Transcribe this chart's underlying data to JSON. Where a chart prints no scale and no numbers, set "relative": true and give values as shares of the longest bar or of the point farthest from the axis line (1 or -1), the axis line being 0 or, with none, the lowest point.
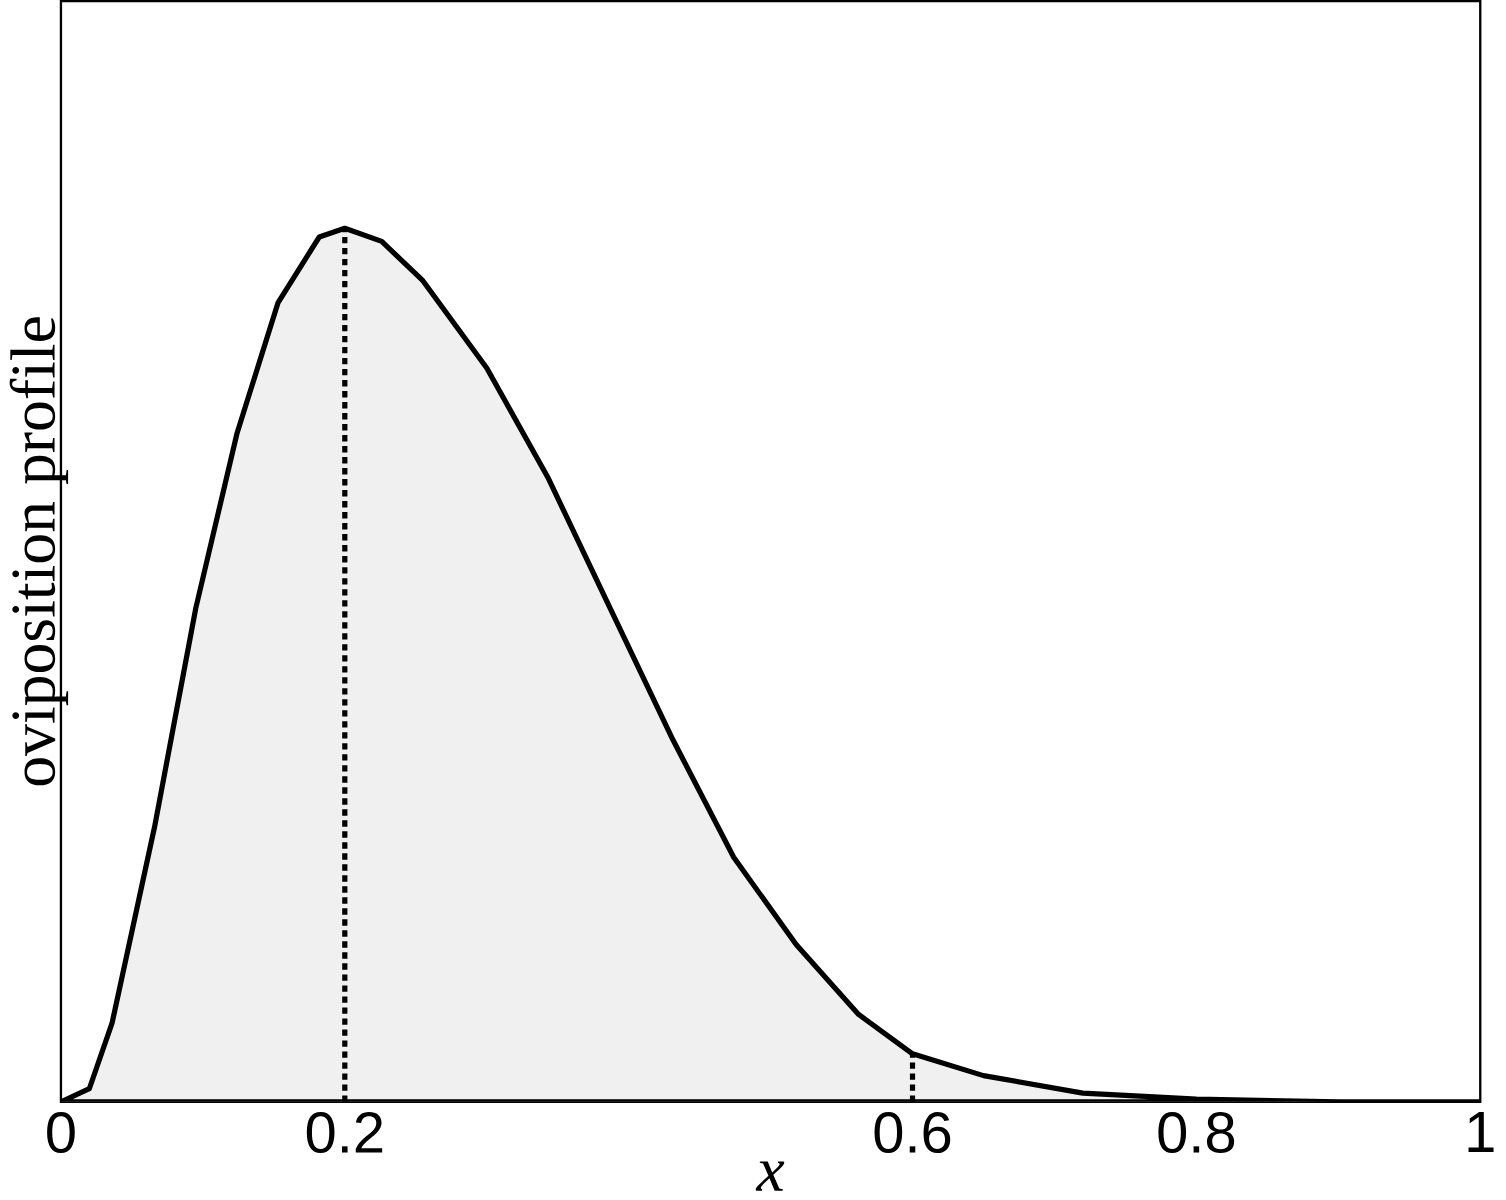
{
  "chart_data": {
    "type": "area",
    "xlabel": "x",
    "ylabel": "oviposition profile",
    "relative": true,
    "xlim": [
      0,
      1
    ],
    "xticks": [
      0,
      0.2,
      0.6,
      0.8,
      1
    ],
    "x": [
      0,
      0.02,
      0.036,
      0.066,
      0.095,
      0.124,
      0.153,
      0.182,
      0.2,
      0.226,
      0.255,
      0.3,
      0.343,
      0.387,
      0.431,
      0.474,
      0.518,
      0.562,
      0.6,
      0.65,
      0.72,
      0.8,
      0.9,
      1
    ],
    "series": [
      {
        "color": "#000000",
        "values": [
          0,
          0.015,
          0.09,
          0.315,
          0.565,
          0.765,
          0.915,
          0.99,
          1,
          0.985,
          0.94,
          0.84,
          0.715,
          0.565,
          0.415,
          0.28,
          0.18,
          0.1,
          0.055,
          0.03,
          0.01,
          0.003,
          0,
          0
        ]
      },
      {
        "type": "line",
        "line_style": "dotted",
        "color": "#000000",
        "x": [
          0.6,
          0.6
        ],
        "values": [
          0,
          0.055
        ]
      }
    ],
    "ref_lines": [
      {
        "axis": "x",
        "value": 0.2,
        "line_style": "dotted",
        "color": "#000000"
      }
    ]
  }
}
